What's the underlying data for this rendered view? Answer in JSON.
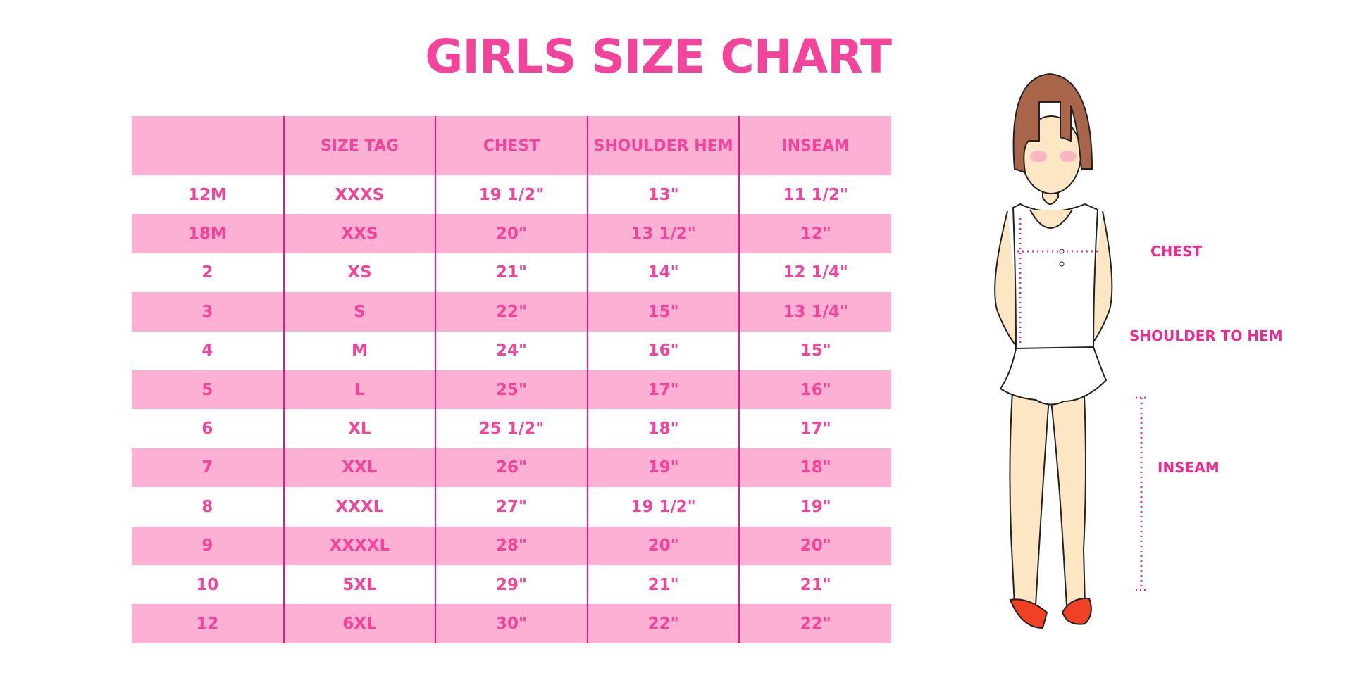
{
  "title": "GIRLS SIZE CHART",
  "colors": {
    "accent": "#f2449b",
    "header_bg": "#fcb0d4",
    "divider": "#e8168a"
  },
  "table": {
    "headers": [
      "",
      "SIZE TAG",
      "CHEST",
      "SHOULDER HEM",
      "INSEAM"
    ],
    "rows": [
      [
        "12M",
        "XXXS",
        "19 1/2\"",
        "13\"",
        "11 1/2\""
      ],
      [
        "18M",
        "XXS",
        "20\"",
        "13 1/2\"",
        "12\""
      ],
      [
        "2",
        "XS",
        "21\"",
        "14\"",
        "12 1/4\""
      ],
      [
        "3",
        "S",
        "22\"",
        "15\"",
        "13 1/4\""
      ],
      [
        "4",
        "M",
        "24\"",
        "16\"",
        "15\""
      ],
      [
        "5",
        "L",
        "25\"",
        "17\"",
        "16\""
      ],
      [
        "6",
        "XL",
        "25 1/2\"",
        "18\"",
        "17\""
      ],
      [
        "7",
        "XXL",
        "26\"",
        "19\"",
        "18\""
      ],
      [
        "8",
        "XXXL",
        "27\"",
        "19 1/2\"",
        "19\""
      ],
      [
        "9",
        "XXXXL",
        "28\"",
        "20\"",
        "20\""
      ],
      [
        "10",
        "5XL",
        "29\"",
        "21\"",
        "21\""
      ],
      [
        "12",
        "6XL",
        "30\"",
        "22\"",
        "22\""
      ]
    ]
  },
  "figure": {
    "labels": {
      "chest": "CHEST",
      "shoulder_to_hem": "SHOULDER TO HEM",
      "inseam": "INSEAM"
    }
  }
}
